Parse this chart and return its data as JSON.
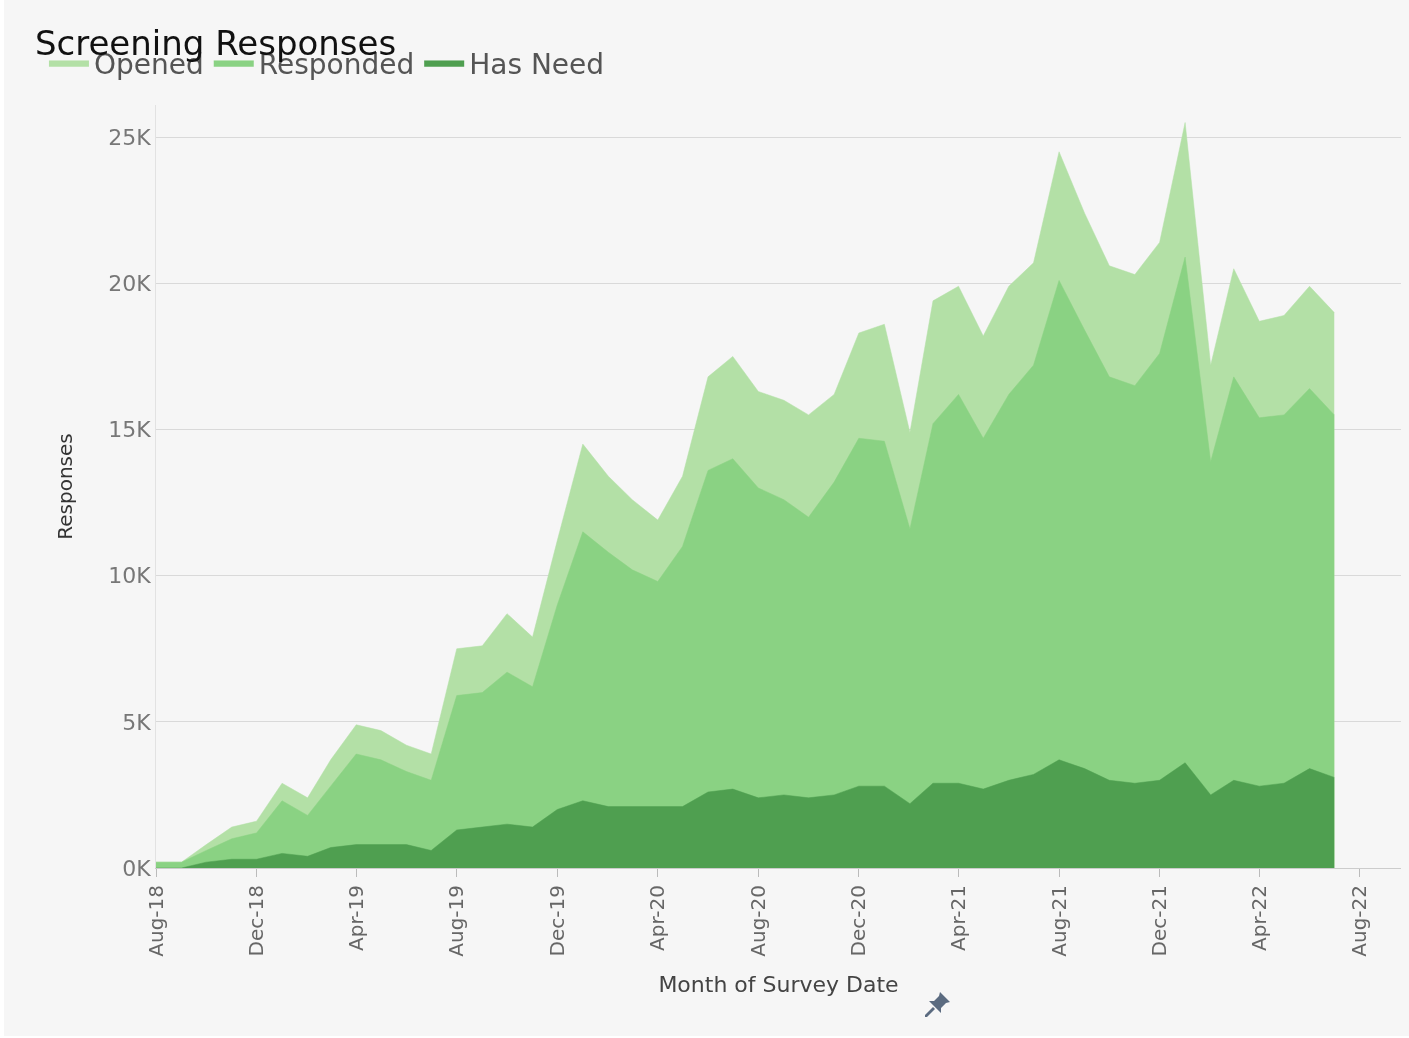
{
  "chart_data": {
    "type": "area",
    "title": "Screening Responses",
    "xlabel": "Month of Survey Date",
    "ylabel": "Responses",
    "x": [
      "2018-08",
      "2018-09",
      "2018-10",
      "2018-11",
      "2018-12",
      "2019-01",
      "2019-02",
      "2019-03",
      "2019-04",
      "2019-05",
      "2019-06",
      "2019-07",
      "2019-08",
      "2019-09",
      "2019-10",
      "2019-11",
      "2019-12",
      "2020-01",
      "2020-02",
      "2020-03",
      "2020-04",
      "2020-05",
      "2020-06",
      "2020-07",
      "2020-08",
      "2020-09",
      "2020-10",
      "2020-11",
      "2020-12",
      "2021-01",
      "2021-02",
      "2021-03",
      "2021-04",
      "2021-05",
      "2021-06",
      "2021-07",
      "2021-08",
      "2021-09",
      "2021-10",
      "2021-11",
      "2021-12",
      "2022-01",
      "2022-02",
      "2022-03",
      "2022-04",
      "2022-05",
      "2022-06",
      "2022-07"
    ],
    "series": [
      {
        "name": "Opened",
        "color": "#b3e0a6",
        "values": [
          0.2,
          0.2,
          0.8,
          1.4,
          1.6,
          2.9,
          2.4,
          3.7,
          4.9,
          4.7,
          4.2,
          3.9,
          7.5,
          7.6,
          8.7,
          7.9,
          11.2,
          14.5,
          13.4,
          12.6,
          11.9,
          13.4,
          16.8,
          17.5,
          16.3,
          16.0,
          15.5,
          16.2,
          18.3,
          18.6,
          14.9,
          19.4,
          19.9,
          18.2,
          19.9,
          20.7,
          24.5,
          22.4,
          20.6,
          20.3,
          21.4,
          25.5,
          17.2,
          20.5,
          18.7,
          18.9,
          19.9,
          19.0
        ]
      },
      {
        "name": "Responded",
        "color": "#8ad283",
        "values": [
          0.2,
          0.2,
          0.6,
          1.0,
          1.2,
          2.3,
          1.8,
          2.8,
          3.9,
          3.7,
          3.3,
          3.0,
          5.9,
          6.0,
          6.7,
          6.2,
          9.0,
          11.5,
          10.8,
          10.2,
          9.8,
          11.0,
          13.6,
          14.0,
          13.0,
          12.6,
          12.0,
          13.2,
          14.7,
          14.6,
          11.6,
          15.2,
          16.2,
          14.7,
          16.2,
          17.2,
          20.1,
          18.4,
          16.8,
          16.5,
          17.6,
          20.9,
          13.9,
          16.8,
          15.4,
          15.5,
          16.4,
          15.5
        ]
      },
      {
        "name": "Has Need",
        "color": "#4f9f50",
        "values": [
          0,
          0,
          0.2,
          0.3,
          0.3,
          0.5,
          0.4,
          0.7,
          0.8,
          0.8,
          0.8,
          0.6,
          1.3,
          1.4,
          1.5,
          1.4,
          2.0,
          2.3,
          2.1,
          2.1,
          2.1,
          2.1,
          2.6,
          2.7,
          2.4,
          2.5,
          2.4,
          2.5,
          2.8,
          2.8,
          2.2,
          2.9,
          2.9,
          2.7,
          3.0,
          3.2,
          3.7,
          3.4,
          3.0,
          2.9,
          3.0,
          3.6,
          2.5,
          3.0,
          2.8,
          2.9,
          3.4,
          3.1
        ]
      }
    ],
    "xlim": [
      "2018-08-01",
      "2022-09-20"
    ],
    "xticks": [
      {
        "value": "2018-08",
        "label": "Aug-18"
      },
      {
        "value": "2018-12",
        "label": "Dec-18"
      },
      {
        "value": "2019-04",
        "label": "Apr-19"
      },
      {
        "value": "2019-08",
        "label": "Aug-19"
      },
      {
        "value": "2019-12",
        "label": "Dec-19"
      },
      {
        "value": "2020-04",
        "label": "Apr-20"
      },
      {
        "value": "2020-08",
        "label": "Aug-20"
      },
      {
        "value": "2020-12",
        "label": "Dec-20"
      },
      {
        "value": "2021-04",
        "label": "Apr-21"
      },
      {
        "value": "2021-08",
        "label": "Aug-21"
      },
      {
        "value": "2021-12",
        "label": "Dec-21"
      },
      {
        "value": "2022-04",
        "label": "Apr-22"
      },
      {
        "value": "2022-08",
        "label": "Aug-22"
      }
    ],
    "ylim": [
      0,
      26.1
    ],
    "yticks": [
      {
        "value": 0,
        "label": "0K"
      },
      {
        "value": 5,
        "label": "5K"
      },
      {
        "value": 10,
        "label": "10K"
      },
      {
        "value": 15,
        "label": "15K"
      },
      {
        "value": 20,
        "label": "20K"
      },
      {
        "value": 25,
        "label": "25K"
      }
    ],
    "grid": "y",
    "legend": "top left",
    "marker": "none"
  }
}
